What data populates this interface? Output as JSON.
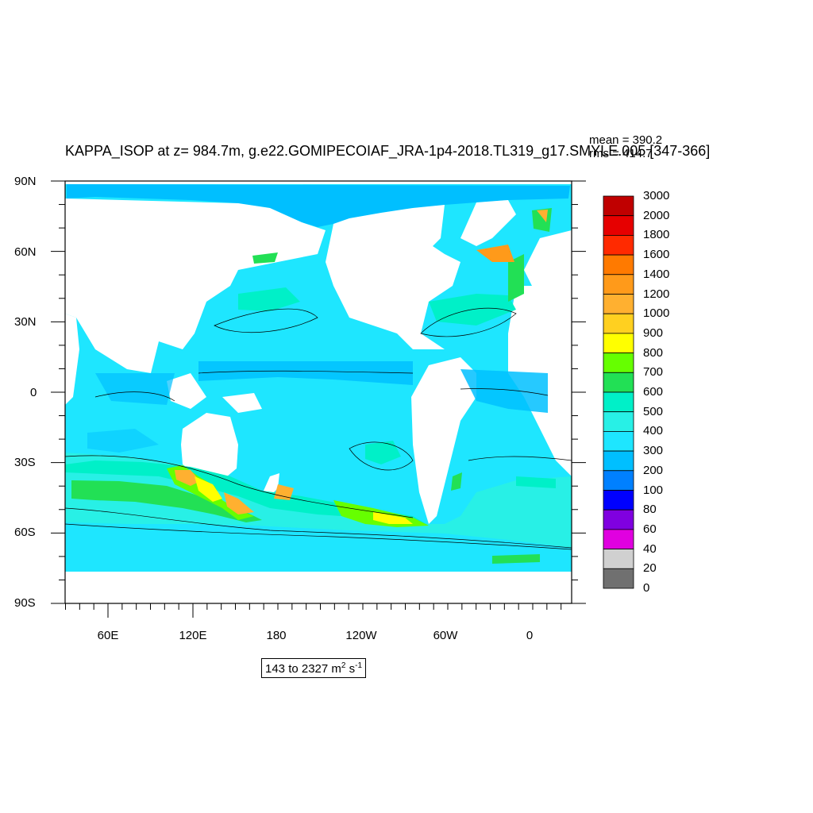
{
  "title": "KAPPA_ISOP at z= 984.7m, g.e22.GOMIPECOIAF_JRA-1p4-2018.TL319_g17.SMYLE.005 [347-366]",
  "stats": {
    "mean": "mean = 390.2",
    "rms": "rms = 414.7"
  },
  "axes": {
    "lat_labels": [
      "90N",
      "60N",
      "30N",
      "0",
      "30S",
      "60S",
      "90S"
    ],
    "lon_labels": [
      "60E",
      "120E",
      "180",
      "120W",
      "60W",
      "0"
    ]
  },
  "colorbar": {
    "levels": [
      "3000",
      "2000",
      "1800",
      "1600",
      "1400",
      "1200",
      "1000",
      "900",
      "800",
      "700",
      "600",
      "500",
      "400",
      "300",
      "200",
      "100",
      "80",
      "60",
      "40",
      "20",
      "0"
    ],
    "colors": [
      "#c00000",
      "#e60000",
      "#ff2a00",
      "#ff7a00",
      "#ff9a1a",
      "#ffb030",
      "#ffd020",
      "#ffff00",
      "#66ff00",
      "#22e055",
      "#00f0c8",
      "#28f0e6",
      "#1ee6ff",
      "#00bfff",
      "#0080ff",
      "#0000ff",
      "#8000e0",
      "#e000e0",
      "#d0d0d0",
      "#707070"
    ]
  },
  "range": {
    "text": "143 to 2327 m",
    "exp1": "2",
    "mid": " s",
    "exp2": "-1"
  }
}
